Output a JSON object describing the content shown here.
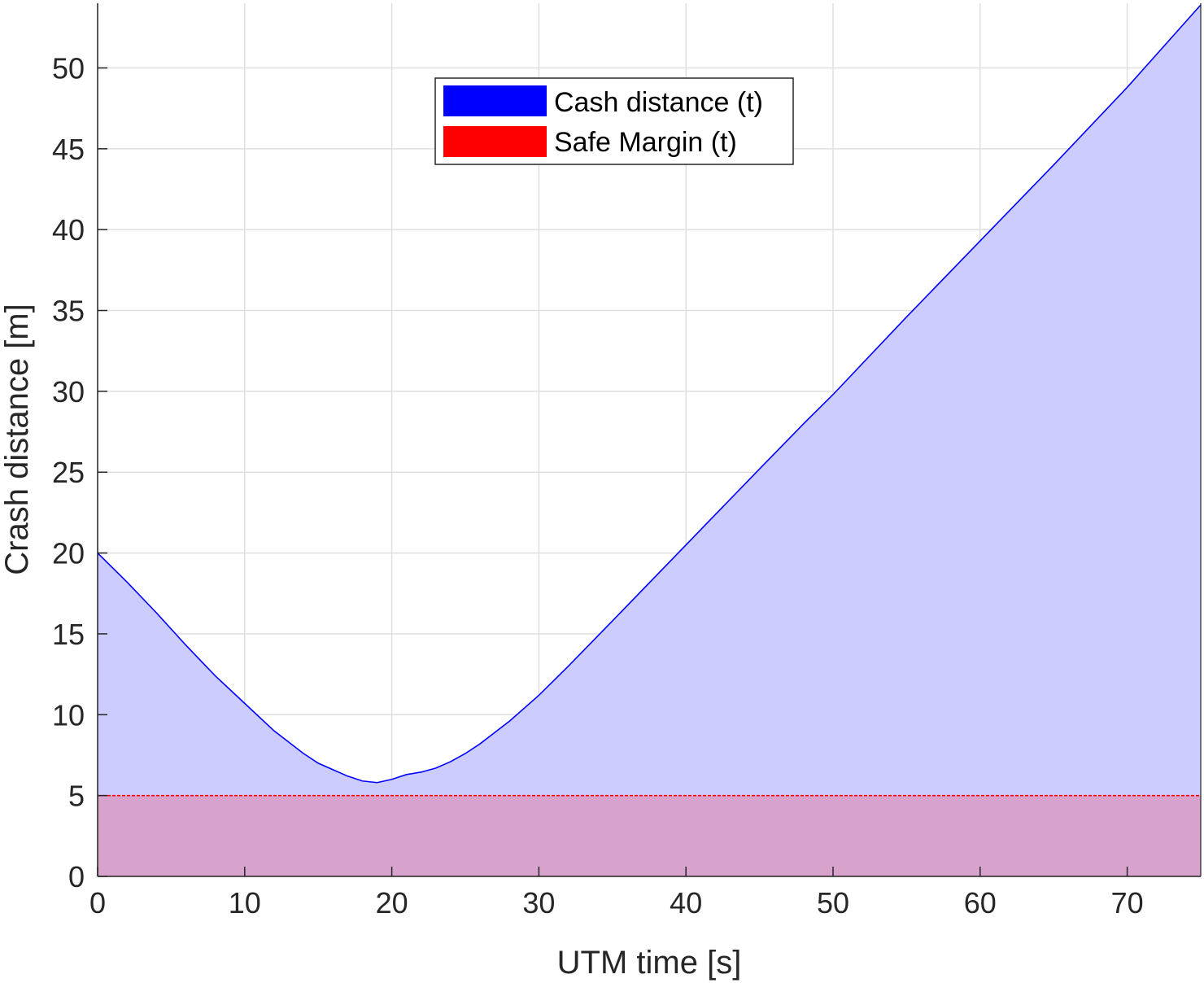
{
  "chart_data": {
    "type": "area",
    "xlabel": "UTM time [s]",
    "ylabel": "Crash distance [m]",
    "xlim": [
      0,
      75
    ],
    "ylim": [
      0,
      54
    ],
    "xticks": [
      0,
      10,
      20,
      30,
      40,
      50,
      60,
      70
    ],
    "yticks": [
      0,
      5,
      10,
      15,
      20,
      25,
      30,
      35,
      40,
      45,
      50
    ],
    "grid": true,
    "legend_position": "top-center",
    "series": [
      {
        "name": "Cash distance (t)",
        "color": "#0000ff",
        "fill_color": "#ccccff",
        "x": [
          0,
          2,
          4,
          6,
          8,
          10,
          12,
          14,
          15,
          16,
          17,
          18,
          19,
          20,
          21,
          22,
          23,
          24,
          25,
          26,
          28,
          30,
          32,
          35,
          40,
          45,
          48,
          50,
          55,
          60,
          65,
          70,
          75
        ],
        "y": [
          20,
          18.2,
          16.3,
          14.3,
          12.4,
          10.7,
          9.0,
          7.6,
          7.0,
          6.6,
          6.2,
          5.9,
          5.8,
          6.0,
          6.3,
          6.45,
          6.7,
          7.1,
          7.6,
          8.2,
          9.6,
          11.2,
          13.0,
          15.8,
          20.5,
          25.2,
          28.0,
          29.8,
          34.6,
          39.3,
          44.0,
          48.8,
          53.9
        ]
      },
      {
        "name": "Safe Margin (t)",
        "color": "#ff0000",
        "fill_color": "#d7a2cc",
        "x": [
          0,
          75
        ],
        "y": [
          5,
          5
        ]
      }
    ]
  }
}
